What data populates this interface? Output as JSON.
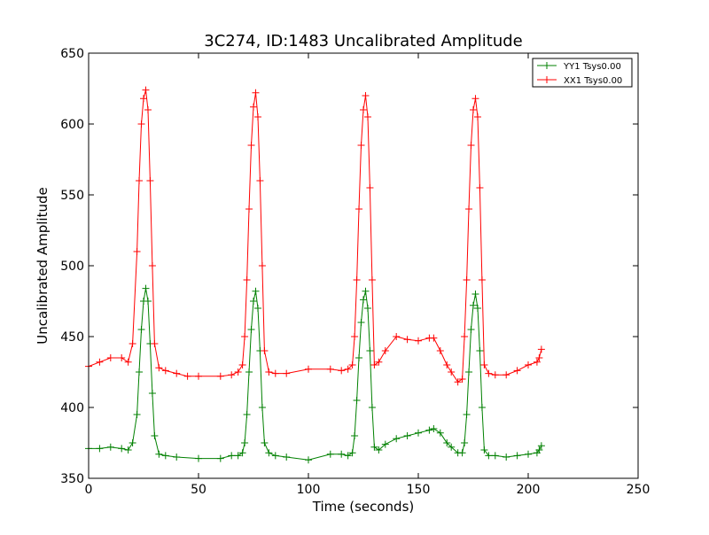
{
  "chart_data": {
    "type": "line",
    "title": "3C274, ID:1483 Uncalibrated Amplitude",
    "xlabel": "Time (seconds)",
    "ylabel": "Uncalibrated Amplitude",
    "xlim": [
      0,
      250
    ],
    "ylim": [
      350,
      650
    ],
    "xticks": [
      0,
      50,
      100,
      150,
      200,
      250
    ],
    "yticks": [
      350,
      400,
      450,
      500,
      550,
      600,
      650
    ],
    "grid": false,
    "legend_position": "top-right",
    "marker": "+",
    "series": [
      {
        "name": "YY1 Tsys0.00",
        "color": "#008000",
        "x": [
          0,
          5,
          10,
          15,
          18,
          20,
          22,
          23,
          24,
          25,
          26,
          27,
          28,
          29,
          30,
          32,
          35,
          40,
          50,
          60,
          65,
          68,
          70,
          71,
          72,
          73,
          74,
          75,
          76,
          77,
          78,
          79,
          80,
          82,
          85,
          90,
          100,
          110,
          115,
          118,
          120,
          121,
          122,
          123,
          124,
          125,
          126,
          127,
          128,
          129,
          130,
          132,
          135,
          140,
          145,
          150,
          155,
          157,
          160,
          163,
          165,
          168,
          170,
          171,
          172,
          173,
          174,
          175,
          176,
          177,
          178,
          179,
          180,
          182,
          185,
          190,
          195,
          200,
          204,
          205,
          206
        ],
        "values": [
          371,
          371,
          372,
          371,
          370,
          375,
          395,
          425,
          455,
          475,
          484,
          475,
          445,
          410,
          380,
          367,
          366,
          365,
          364,
          364,
          366,
          366,
          368,
          375,
          395,
          425,
          455,
          475,
          482,
          470,
          440,
          400,
          375,
          368,
          366,
          365,
          363,
          367,
          367,
          366,
          368,
          380,
          405,
          435,
          460,
          476,
          482,
          470,
          440,
          400,
          372,
          370,
          374,
          378,
          380,
          382,
          384,
          385,
          382,
          375,
          372,
          368,
          368,
          375,
          395,
          425,
          455,
          472,
          480,
          470,
          440,
          400,
          370,
          366,
          366,
          365,
          366,
          367,
          368,
          370,
          373
        ]
      },
      {
        "name": "XX1 Tsys0.00",
        "color": "#ff0000",
        "x": [
          0,
          5,
          10,
          15,
          18,
          20,
          22,
          23,
          24,
          25,
          26,
          27,
          28,
          29,
          30,
          32,
          35,
          40,
          45,
          50,
          60,
          65,
          68,
          70,
          71,
          72,
          73,
          74,
          75,
          76,
          77,
          78,
          79,
          80,
          82,
          85,
          90,
          100,
          110,
          115,
          118,
          120,
          121,
          122,
          123,
          124,
          125,
          126,
          127,
          128,
          129,
          130,
          132,
          135,
          140,
          145,
          150,
          155,
          157,
          160,
          163,
          165,
          168,
          170,
          171,
          172,
          173,
          174,
          175,
          176,
          177,
          178,
          179,
          180,
          182,
          185,
          190,
          195,
          200,
          204,
          205,
          206
        ],
        "values": [
          429,
          432,
          435,
          435,
          432,
          445,
          510,
          560,
          600,
          618,
          624,
          610,
          560,
          500,
          445,
          428,
          426,
          424,
          422,
          422,
          422,
          423,
          425,
          430,
          450,
          490,
          540,
          585,
          612,
          622,
          605,
          560,
          500,
          440,
          425,
          424,
          424,
          427,
          427,
          426,
          427,
          430,
          450,
          490,
          540,
          585,
          610,
          620,
          605,
          555,
          490,
          430,
          432,
          440,
          450,
          448,
          447,
          449,
          449,
          440,
          430,
          425,
          418,
          420,
          450,
          490,
          540,
          585,
          610,
          618,
          605,
          555,
          490,
          430,
          424,
          423,
          423,
          426,
          430,
          432,
          435,
          441
        ]
      }
    ]
  }
}
